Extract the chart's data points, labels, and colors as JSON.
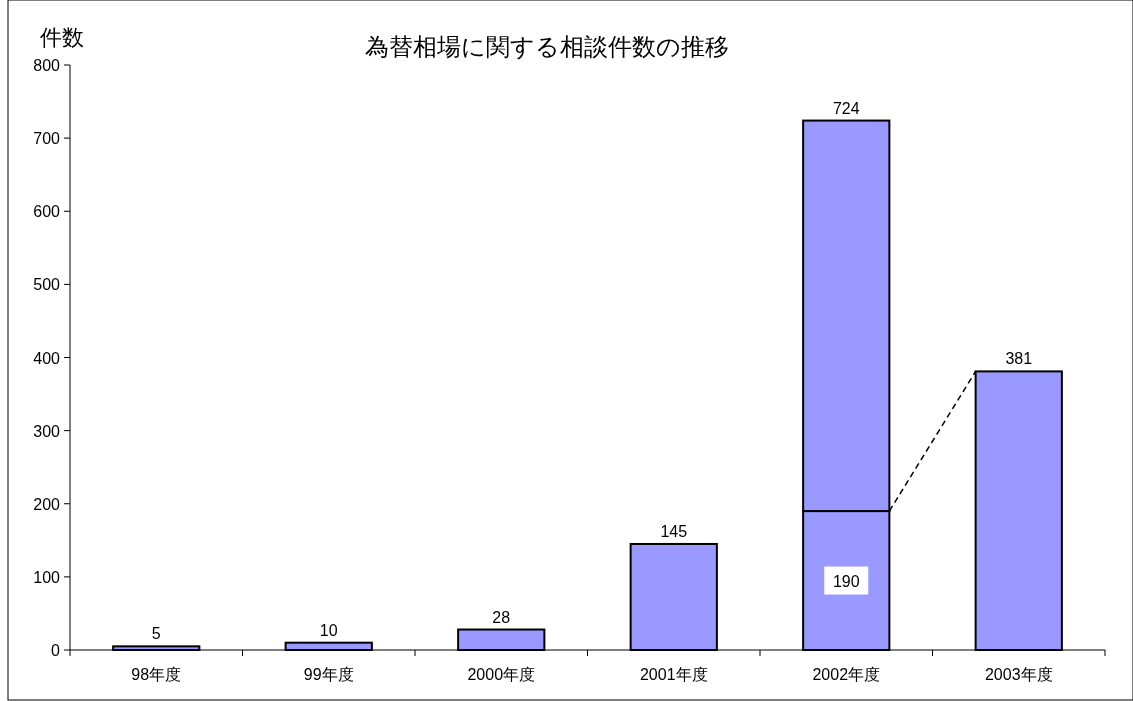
{
  "chart_data": {
    "type": "bar",
    "title": "為替相場に関する相談件数の推移",
    "ylabel": "件数",
    "categories": [
      "98年度",
      "99年度",
      "2000年度",
      "2001年度",
      "2002年度",
      "2003年度"
    ],
    "stacked": true,
    "series": [
      {
        "color": "#9999ff",
        "values": [
          5,
          10,
          28,
          145,
          190,
          381
        ],
        "value_labels": [
          null,
          null,
          null,
          null,
          "190",
          null
        ]
      },
      {
        "color": "#9999ff",
        "values": [
          null,
          null,
          null,
          null,
          534,
          null
        ]
      }
    ],
    "totals": [
      "5",
      "10",
      "28",
      "145",
      "724",
      "381"
    ],
    "ylim": [
      0,
      800
    ],
    "yticks": [
      0,
      100,
      200,
      300,
      400,
      500,
      600,
      700,
      800
    ],
    "grid": false
  }
}
